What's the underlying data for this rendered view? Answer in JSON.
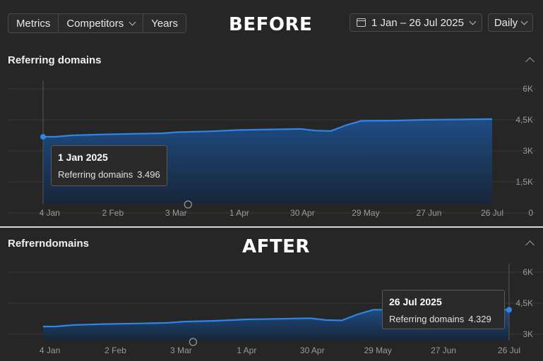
{
  "toolbar": {
    "tabs": [
      "Metrics",
      "Competitors",
      "Years"
    ],
    "date_range": "1 Jan – 26 Jul 2025",
    "granularity": "Daily",
    "icons": [
      "calendar-icon",
      "chevron-down-icon"
    ]
  },
  "banners": {
    "before": "BEFORE",
    "after": "AFTER"
  },
  "colors": {
    "line": "#2f86e8",
    "area_top": "#1e4f8a",
    "area_bottom": "#16263c",
    "background": "#262626"
  },
  "panels": {
    "before": {
      "title": "Referring domains",
      "tooltip": {
        "date": "1 Jan 2025",
        "label": "Referring domains",
        "value": "3.496"
      }
    },
    "after": {
      "title": "Refrerndomains",
      "tooltip": {
        "date": "26 Jul 2025",
        "label": "Referring domains",
        "value": "4.329"
      }
    }
  },
  "chart_data": [
    {
      "type": "area",
      "title": "Referring domains",
      "x": [
        "1 Jan",
        "7 Jan",
        "14 Jan",
        "28 Jan",
        "11 Feb",
        "25 Feb",
        "4 Mar",
        "18 Mar",
        "1 Apr",
        "15 Apr",
        "29 Apr",
        "6 May",
        "13 May",
        "20 May",
        "27 May",
        "10 Jun",
        "24 Jun",
        "26 Jul"
      ],
      "series": [
        {
          "name": "Referring domains",
          "values": [
            3496,
            3500,
            3570,
            3620,
            3650,
            3680,
            3740,
            3780,
            3850,
            3880,
            3910,
            3820,
            3800,
            4100,
            4330,
            4340,
            4380,
            4420
          ]
        }
      ],
      "ylim": [
        0,
        6000
      ],
      "y_ticks": [
        "6K",
        "4,5K",
        "3K",
        "1,5K",
        "0"
      ],
      "x_ticks": [
        "4 Jan",
        "2 Feb",
        "3 Mar",
        "1 Apr",
        "30 Apr",
        "29 May",
        "27 Jun",
        "26 Jul"
      ],
      "grid": true,
      "highlight": {
        "x": "1 Jan",
        "value": 3496
      }
    },
    {
      "type": "area",
      "title": "Refrerndomains",
      "x": [
        "1 Jan",
        "7 Jan",
        "14 Jan",
        "28 Jan",
        "11 Feb",
        "25 Feb",
        "4 Mar",
        "18 Mar",
        "1 Apr",
        "15 Apr",
        "29 Apr",
        "6 May",
        "13 May",
        "20 May",
        "27 May",
        "10 Jun",
        "24 Jun",
        "26 Jul"
      ],
      "series": [
        {
          "name": "Referring domains",
          "values": [
            3496,
            3500,
            3570,
            3620,
            3650,
            3680,
            3740,
            3780,
            3850,
            3880,
            3910,
            3820,
            3800,
            4100,
            4330,
            4340,
            4380,
            4329
          ]
        }
      ],
      "ylim": [
        2800,
        6200
      ],
      "y_ticks": [
        "6K",
        "4,5K",
        "3K"
      ],
      "x_ticks": [
        "4 Jan",
        "2 Feb",
        "3 Mar",
        "1 Apr",
        "30 Apr",
        "29 May",
        "27 Jun",
        "26 Jul"
      ],
      "grid": true,
      "highlight": {
        "x": "26 Jul",
        "value": 4329
      }
    }
  ]
}
